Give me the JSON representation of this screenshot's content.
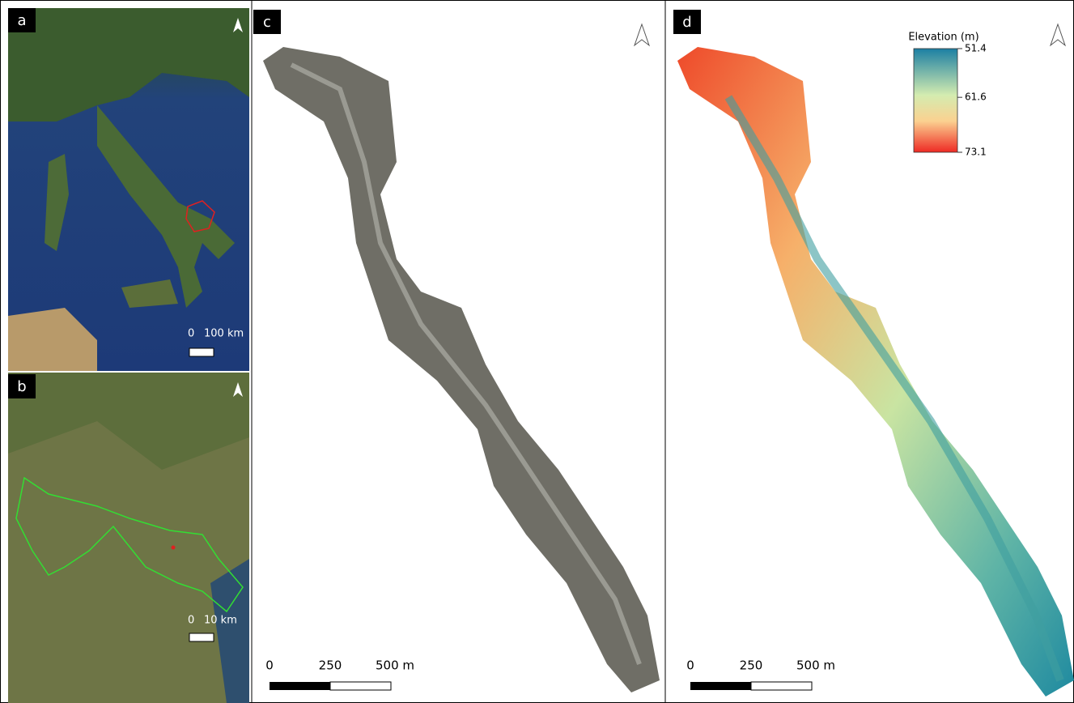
{
  "panels": [
    {
      "label": "a",
      "scale_bar": [
        "0",
        "100 km"
      ]
    },
    {
      "label": "b",
      "scale_bar": [
        "0",
        "10 km"
      ]
    },
    {
      "label": "c",
      "scale_bar": [
        "0",
        "250",
        "500 m"
      ]
    },
    {
      "label": "d",
      "scale_bar": [
        "0",
        "250",
        "500 m"
      ]
    }
  ],
  "legend": {
    "title": "Elevation (m)",
    "ticks": [
      51.4,
      61.6,
      73.1
    ]
  }
}
